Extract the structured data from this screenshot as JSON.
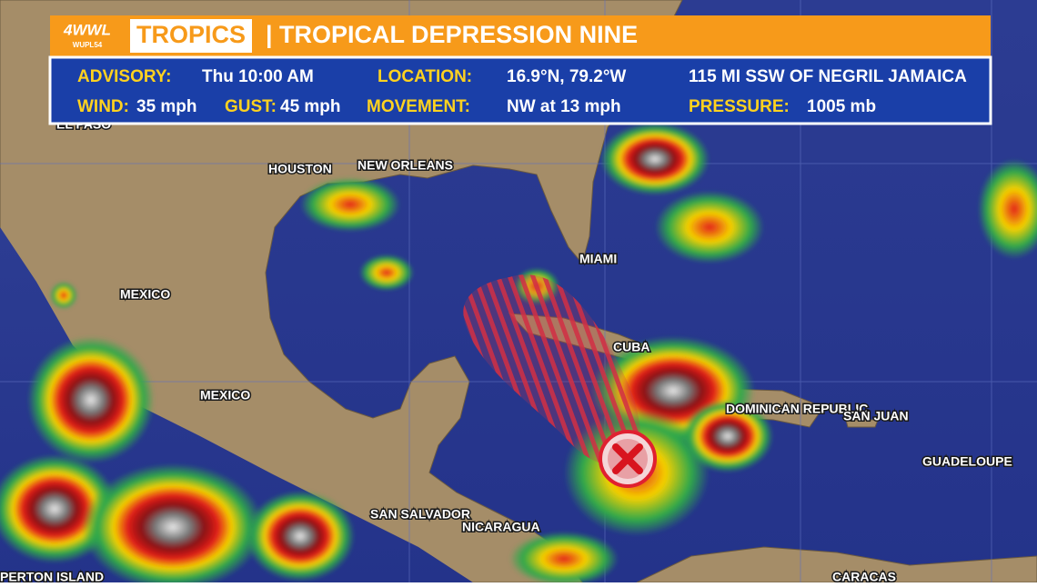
{
  "header": {
    "logo": "4WWL",
    "logo_sub": "WUPL54",
    "section": "TROPICS",
    "title": "| TROPICAL DEPRESSION NINE"
  },
  "advisory": {
    "rows": [
      [
        {
          "label": "ADVISORY:",
          "value": "Thu 10:00 AM"
        },
        {
          "label": "LOCATION:",
          "value": "16.9°N, 79.2°W"
        },
        {
          "value": "115 MI SSW OF NEGRIL JAMAICA"
        }
      ],
      [
        {
          "label": "WIND:",
          "value": "35 mph"
        },
        {
          "label": "GUST:",
          "value": "45 mph"
        },
        {
          "label": "MOVEMENT:",
          "value": "NW at 13 mph"
        },
        {
          "label": "PRESSURE:",
          "value": "1005 mb"
        }
      ]
    ]
  },
  "map_labels": [
    "EL PASO",
    "HOUSTON",
    "NEW ORLEANS",
    "MIAMI",
    "MEXICO",
    "MEXICO",
    "CUBA",
    "DOMINICAN REPUBLIC",
    "SAN JUAN",
    "GUADELOUPE",
    "SAN SALVADOR",
    "NICARAGUA",
    "PERTON ISLAND",
    "CARACAS"
  ]
}
